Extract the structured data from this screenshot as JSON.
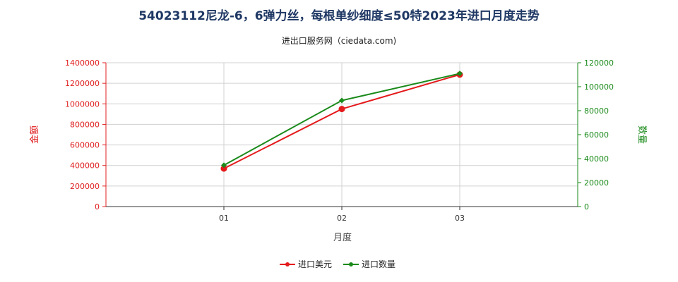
{
  "chart_data": {
    "type": "line",
    "title": "54023112尼龙-6，6弹力丝，每根单纱细度≤50特2023年进口月度走势",
    "subtitle": "进出口服务网（ciedata.com)",
    "xlabel": "月度",
    "ylabel_left": "金额",
    "ylabel_right": "数量",
    "categories": [
      "01",
      "02",
      "03"
    ],
    "y_left": {
      "min": 0,
      "max": 1400000,
      "ticks": [
        "0",
        "200000",
        "400000",
        "600000",
        "800000",
        "1000000",
        "1200000",
        "1400000"
      ]
    },
    "y_right": {
      "min": 0,
      "max": 120000,
      "ticks": [
        "0",
        "20000",
        "40000",
        "60000",
        "80000",
        "100000",
        "120000"
      ]
    },
    "grid": true,
    "legend_position": "bottom",
    "series": [
      {
        "name": "进口美元",
        "axis": "left",
        "color": "#e41a1c",
        "values": [
          370000,
          950000,
          1285000
        ]
      },
      {
        "name": "进口数量",
        "axis": "right",
        "color": "#1a8a1a",
        "values": [
          34500,
          88500,
          111000
        ]
      }
    ]
  }
}
